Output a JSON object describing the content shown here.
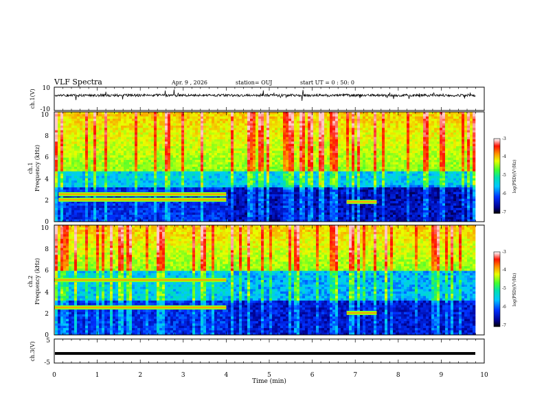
{
  "header": {
    "title": "VLF Spectra",
    "date": "Apr. 9 , 2026",
    "station": "station= OUJ",
    "start_ut": "start UT =  0 : 50: 0"
  },
  "chart_data": [
    {
      "type": "line",
      "name": "ch1-waveform",
      "ylabel": "ch.1(V)",
      "ylim": [
        -10,
        10
      ],
      "yticks": [
        "10",
        "-10"
      ],
      "xlim": [
        0,
        10
      ],
      "baseline_value": 3
    },
    {
      "type": "heatmap",
      "name": "ch1-spectrogram",
      "ylabel": "ch.1\nFrequency (kHz)",
      "ylabel_lines": [
        "ch.1",
        "Frequency (kHz)"
      ],
      "ylim": [
        0,
        10
      ],
      "yticks": [
        "0",
        "2",
        "4",
        "6",
        "8",
        "10"
      ],
      "xlim": [
        0,
        10
      ],
      "colorbar": {
        "label": "log(PSD)(V²/Hz)",
        "range": [
          -7,
          -3
        ],
        "ticks": [
          "-3",
          "-4",
          "-5",
          "-6",
          "-7"
        ]
      },
      "emission_bands_khz": [
        {
          "freq": 2.5,
          "t_start": 0.1,
          "t_end": 4.0
        },
        {
          "freq": 2.0,
          "t_start": 0.1,
          "t_end": 4.0
        },
        {
          "freq": 1.8,
          "t_start": 6.8,
          "t_end": 7.5
        }
      ]
    },
    {
      "type": "heatmap",
      "name": "ch2-spectrogram",
      "ylabel": "ch.2\nFrequency (kHz)",
      "ylabel_lines": [
        "ch.2",
        "Frequency (kHz)"
      ],
      "ylim": [
        0,
        10
      ],
      "yticks": [
        "0",
        "2",
        "4",
        "6",
        "8",
        "10"
      ],
      "xlim": [
        0,
        10
      ],
      "colorbar": {
        "label": "log(PSD)(V²/Hz)",
        "range": [
          -7,
          -3
        ],
        "ticks": [
          "-3",
          "-4",
          "-5",
          "-6",
          "-7"
        ]
      },
      "emission_bands_khz": [
        {
          "freq": 5.0,
          "t_start": 0.0,
          "t_end": 4.0
        },
        {
          "freq": 2.5,
          "t_start": 0.0,
          "t_end": 4.0
        },
        {
          "freq": 2.0,
          "t_start": 6.8,
          "t_end": 7.5
        }
      ]
    },
    {
      "type": "line",
      "name": "ch3-waveform",
      "ylabel": "ch.3(V)",
      "ylim": [
        -5,
        5
      ],
      "yticks": [
        "5",
        "-5"
      ],
      "xlim": [
        0,
        10
      ],
      "baseline_value": -1
    }
  ],
  "xaxis": {
    "label": "Time (min)",
    "ticks": [
      "0",
      "1",
      "2",
      "3",
      "4",
      "5",
      "6",
      "7",
      "8",
      "9",
      "10"
    ]
  }
}
